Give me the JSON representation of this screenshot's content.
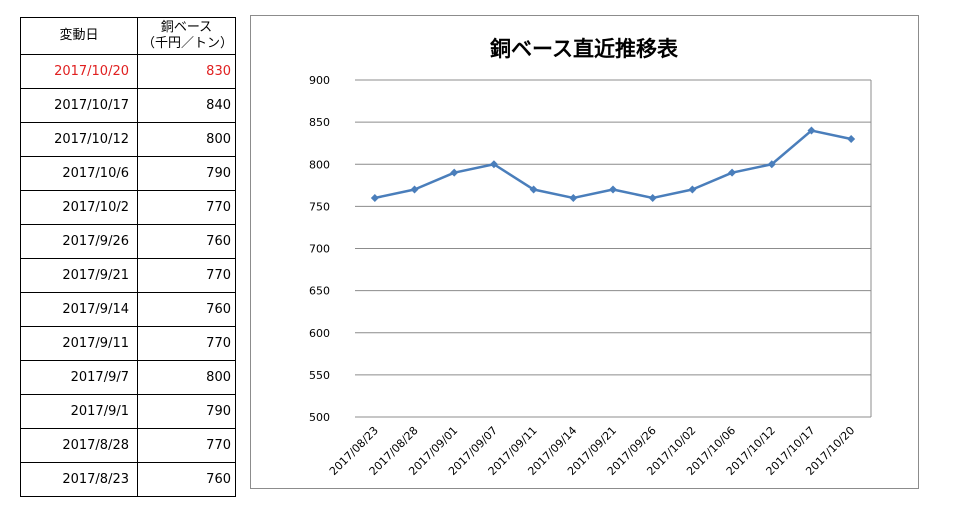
{
  "table": {
    "header_date": "変動日",
    "header_price_line1": "銅ベース",
    "header_price_line2": "（千円／トン）",
    "rows": [
      {
        "date": "2017/10/20",
        "price": "830"
      },
      {
        "date": "2017/10/17",
        "price": "840"
      },
      {
        "date": "2017/10/12",
        "price": "800"
      },
      {
        "date": "2017/10/6",
        "price": "790"
      },
      {
        "date": "2017/10/2",
        "price": "770"
      },
      {
        "date": "2017/9/26",
        "price": "760"
      },
      {
        "date": "2017/9/21",
        "price": "770"
      },
      {
        "date": "2017/9/14",
        "price": "760"
      },
      {
        "date": "2017/9/11",
        "price": "770"
      },
      {
        "date": "2017/9/7",
        "price": "800"
      },
      {
        "date": "2017/9/1",
        "price": "790"
      },
      {
        "date": "2017/8/28",
        "price": "770"
      },
      {
        "date": "2017/8/23",
        "price": "760"
      }
    ],
    "highlight_color": "#e02020"
  },
  "chart_data": {
    "type": "line",
    "title": "銅ベース直近推移表",
    "categories": [
      "2017/08/23",
      "2017/08/28",
      "2017/09/01",
      "2017/09/07",
      "2017/09/11",
      "2017/09/14",
      "2017/09/21",
      "2017/09/26",
      "2017/10/02",
      "2017/10/06",
      "2017/10/12",
      "2017/10/17",
      "2017/10/20"
    ],
    "series": [
      {
        "values": [
          760,
          770,
          790,
          800,
          770,
          760,
          770,
          760,
          770,
          790,
          800,
          840,
          830
        ],
        "color": "#4a7ebb"
      }
    ],
    "ylim": [
      500,
      900
    ],
    "yticks": [
      500,
      550,
      600,
      650,
      700,
      750,
      800,
      850,
      900
    ],
    "grid": true,
    "legend": "none",
    "marker": "diamond"
  }
}
